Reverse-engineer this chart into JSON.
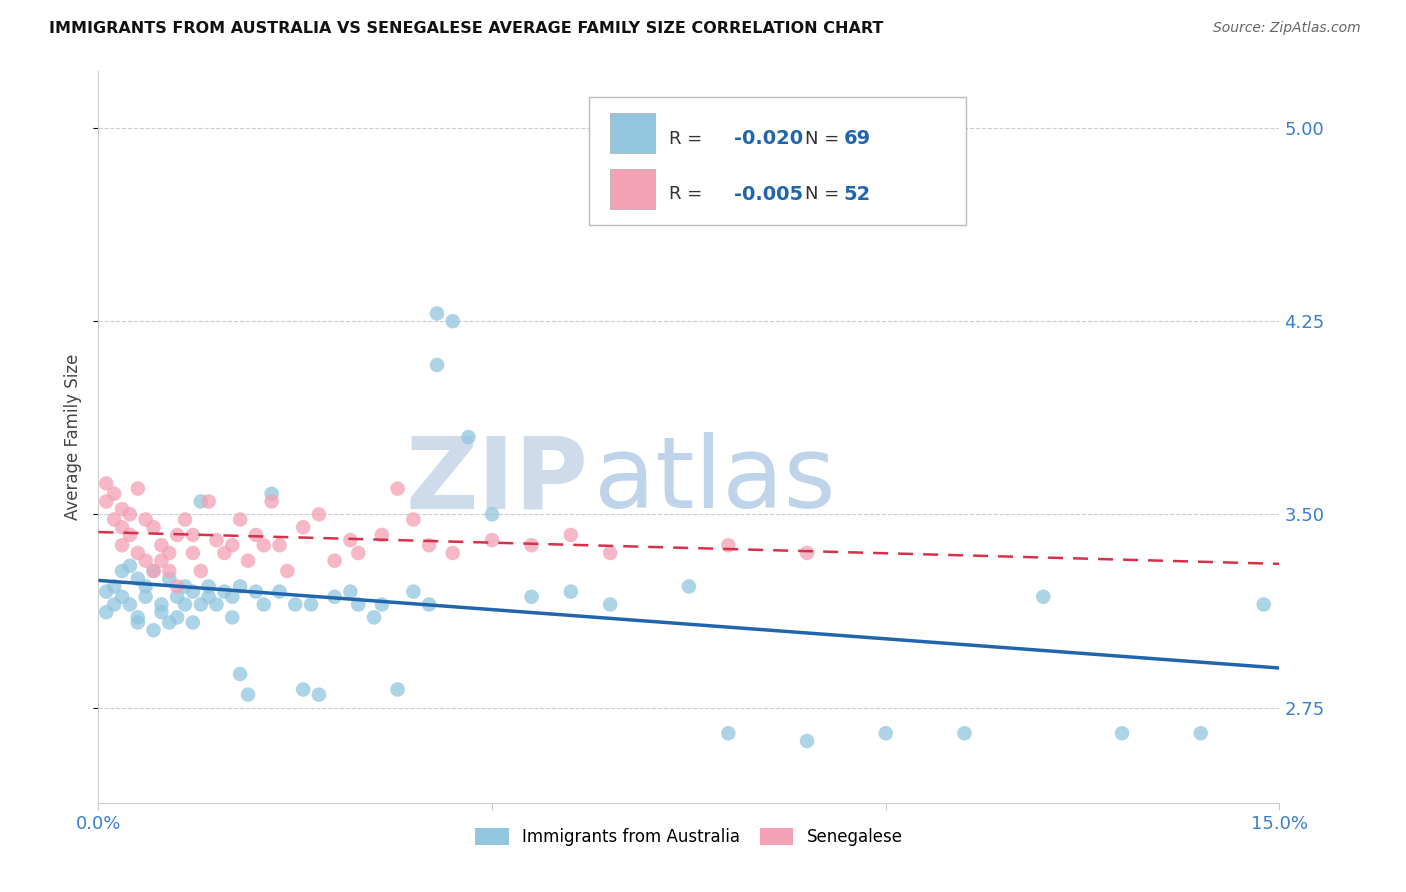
{
  "title": "IMMIGRANTS FROM AUSTRALIA VS SENEGALESE AVERAGE FAMILY SIZE CORRELATION CHART",
  "source": "Source: ZipAtlas.com",
  "ylabel": "Average Family Size",
  "blue_R": "-0.020",
  "blue_N": "69",
  "pink_R": "-0.005",
  "pink_N": "52",
  "blue_scatter_color": "#92c5de",
  "pink_scatter_color": "#f4a0b5",
  "blue_line_color": "#2166ac",
  "pink_line_color": "#d6304a",
  "grid_color": "#cccccc",
  "tick_label_color": "#3a7ecf",
  "legend_label_blue": "Immigrants from Australia",
  "legend_label_pink": "Senegalese",
  "xlim": [
    0.0,
    0.15
  ],
  "ylim": [
    2.38,
    5.22
  ],
  "yticks": [
    2.75,
    3.5,
    4.25,
    5.0
  ],
  "xtick_positions": [
    0.0,
    0.05,
    0.1,
    0.15
  ],
  "xtick_labels": [
    "0.0%",
    "",
    "",
    "15.0%"
  ],
  "blue_x": [
    0.001,
    0.001,
    0.002,
    0.002,
    0.003,
    0.003,
    0.004,
    0.004,
    0.005,
    0.005,
    0.005,
    0.006,
    0.006,
    0.007,
    0.007,
    0.008,
    0.008,
    0.009,
    0.009,
    0.01,
    0.01,
    0.011,
    0.011,
    0.012,
    0.012,
    0.013,
    0.013,
    0.014,
    0.014,
    0.015,
    0.016,
    0.017,
    0.017,
    0.018,
    0.018,
    0.019,
    0.02,
    0.021,
    0.022,
    0.023,
    0.025,
    0.026,
    0.027,
    0.028,
    0.03,
    0.032,
    0.033,
    0.035,
    0.036,
    0.038,
    0.04,
    0.042,
    0.043,
    0.045,
    0.047,
    0.05,
    0.055,
    0.06,
    0.065,
    0.075,
    0.08,
    0.09,
    0.1,
    0.11,
    0.12,
    0.13,
    0.14,
    0.148,
    0.043
  ],
  "blue_y": [
    3.12,
    3.2,
    3.15,
    3.22,
    3.28,
    3.18,
    3.3,
    3.15,
    3.25,
    3.1,
    3.08,
    3.18,
    3.22,
    3.05,
    3.28,
    3.15,
    3.12,
    3.08,
    3.25,
    3.18,
    3.1,
    3.22,
    3.15,
    3.08,
    3.2,
    3.15,
    3.55,
    3.18,
    3.22,
    3.15,
    3.2,
    3.1,
    3.18,
    3.22,
    2.88,
    2.8,
    3.2,
    3.15,
    3.58,
    3.2,
    3.15,
    2.82,
    3.15,
    2.8,
    3.18,
    3.2,
    3.15,
    3.1,
    3.15,
    2.82,
    3.2,
    3.15,
    4.28,
    4.25,
    3.8,
    3.5,
    3.18,
    3.2,
    3.15,
    3.22,
    2.65,
    2.62,
    2.65,
    2.65,
    3.18,
    2.65,
    2.65,
    3.15,
    4.08
  ],
  "pink_x": [
    0.001,
    0.001,
    0.002,
    0.002,
    0.003,
    0.003,
    0.003,
    0.004,
    0.004,
    0.005,
    0.005,
    0.006,
    0.006,
    0.007,
    0.007,
    0.008,
    0.008,
    0.009,
    0.009,
    0.01,
    0.01,
    0.011,
    0.012,
    0.012,
    0.013,
    0.014,
    0.015,
    0.016,
    0.017,
    0.018,
    0.019,
    0.02,
    0.021,
    0.022,
    0.023,
    0.024,
    0.026,
    0.028,
    0.03,
    0.032,
    0.033,
    0.036,
    0.038,
    0.04,
    0.042,
    0.045,
    0.05,
    0.055,
    0.06,
    0.065,
    0.08,
    0.09
  ],
  "pink_y": [
    3.55,
    3.62,
    3.48,
    3.58,
    3.45,
    3.52,
    3.38,
    3.5,
    3.42,
    3.6,
    3.35,
    3.48,
    3.32,
    3.45,
    3.28,
    3.38,
    3.32,
    3.28,
    3.35,
    3.42,
    3.22,
    3.48,
    3.42,
    3.35,
    3.28,
    3.55,
    3.4,
    3.35,
    3.38,
    3.48,
    3.32,
    3.42,
    3.38,
    3.55,
    3.38,
    3.28,
    3.45,
    3.5,
    3.32,
    3.4,
    3.35,
    3.42,
    3.6,
    3.48,
    3.38,
    3.35,
    3.4,
    3.38,
    3.42,
    3.35,
    3.38,
    3.35
  ]
}
